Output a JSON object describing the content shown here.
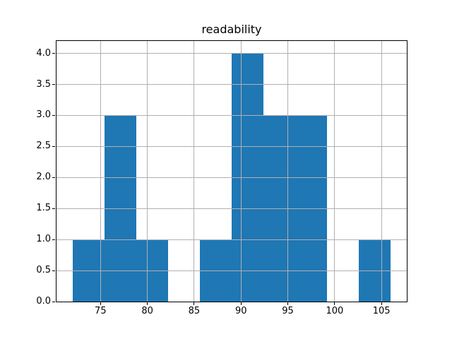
{
  "title": "readability",
  "colors": {
    "bar": "#1f77b4",
    "grid": "#b0b0b0",
    "spine": "#000000",
    "background": "#ffffff",
    "text": "#000000"
  },
  "chart_data": {
    "type": "bar",
    "subtype": "histogram",
    "title": "readability",
    "xlabel": "",
    "ylabel": "",
    "bin_edges": [
      72.0,
      75.4,
      78.8,
      82.2,
      85.6,
      89.0,
      92.4,
      95.8,
      99.2,
      102.6,
      106.0
    ],
    "counts": [
      1,
      3,
      1,
      0,
      1,
      4,
      3,
      3,
      0,
      1
    ],
    "xlim": [
      70.3,
      107.7
    ],
    "ylim": [
      0,
      4.2
    ],
    "x_ticks": [
      75,
      80,
      85,
      90,
      95,
      100,
      105
    ],
    "x_tick_labels": [
      "75",
      "80",
      "85",
      "90",
      "95",
      "100",
      "105"
    ],
    "y_ticks": [
      0.0,
      0.5,
      1.0,
      1.5,
      2.0,
      2.5,
      3.0,
      3.5,
      4.0
    ],
    "y_tick_labels": [
      "0.0",
      "0.5",
      "1.0",
      "1.5",
      "2.0",
      "2.5",
      "3.0",
      "3.5",
      "4.0"
    ],
    "grid": true,
    "grid_above_bars": true,
    "legend": null
  }
}
